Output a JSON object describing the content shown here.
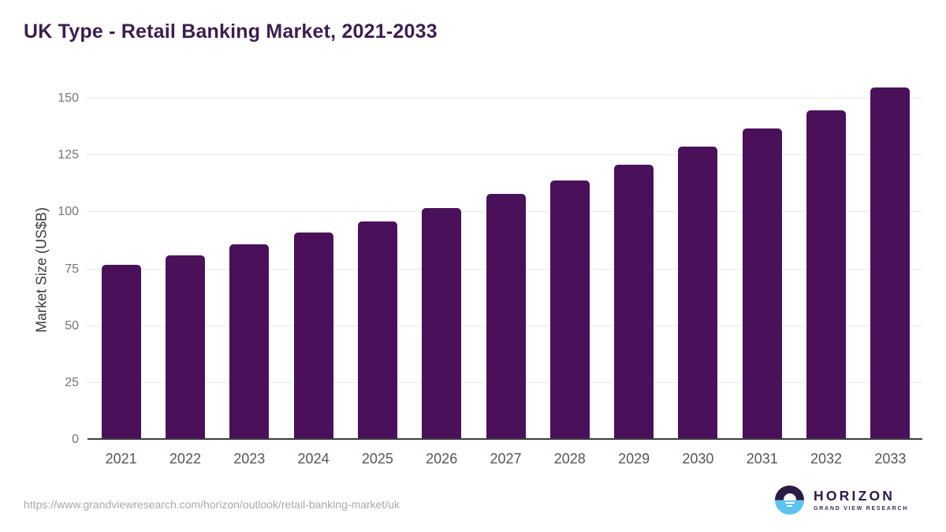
{
  "page": {
    "title": "UK Type - Retail Banking Market, 2021-2033",
    "source_url": "https://www.grandviewresearch.com/horizon/outlook/retail-banking-market/uk"
  },
  "logo": {
    "wordmark": "HORIZON",
    "subtitle": "GRAND VIEW RESEARCH"
  },
  "colors": {
    "bar": "#4a115a",
    "title_text": "#3b1f4e",
    "gridline": "#e9e9e9",
    "axis_line": "#3d3d3d",
    "x_tick_text": "#565656",
    "y_tick_text": "#757575",
    "url_text": "#a9a9a9",
    "logo_purple": "#2b1c44",
    "logo_blue": "#5ec3ef"
  },
  "chart_data": {
    "type": "bar",
    "title": "UK Type - Retail Banking Market, 2021-2033",
    "categories": [
      "2021",
      "2022",
      "2023",
      "2024",
      "2025",
      "2026",
      "2027",
      "2028",
      "2029",
      "2030",
      "2031",
      "2032",
      "2033"
    ],
    "values": [
      77,
      81,
      86,
      91,
      96,
      102,
      108,
      114,
      121,
      129,
      137,
      145,
      155
    ],
    "xlabel": "",
    "ylabel": "Market Size (US$B)",
    "ylim": [
      0,
      158.7
    ],
    "y_ticks": [
      0,
      25,
      50,
      75,
      100,
      125,
      150
    ],
    "grid": "horizontal",
    "legend": "none",
    "bar_color": "#4a115a"
  }
}
